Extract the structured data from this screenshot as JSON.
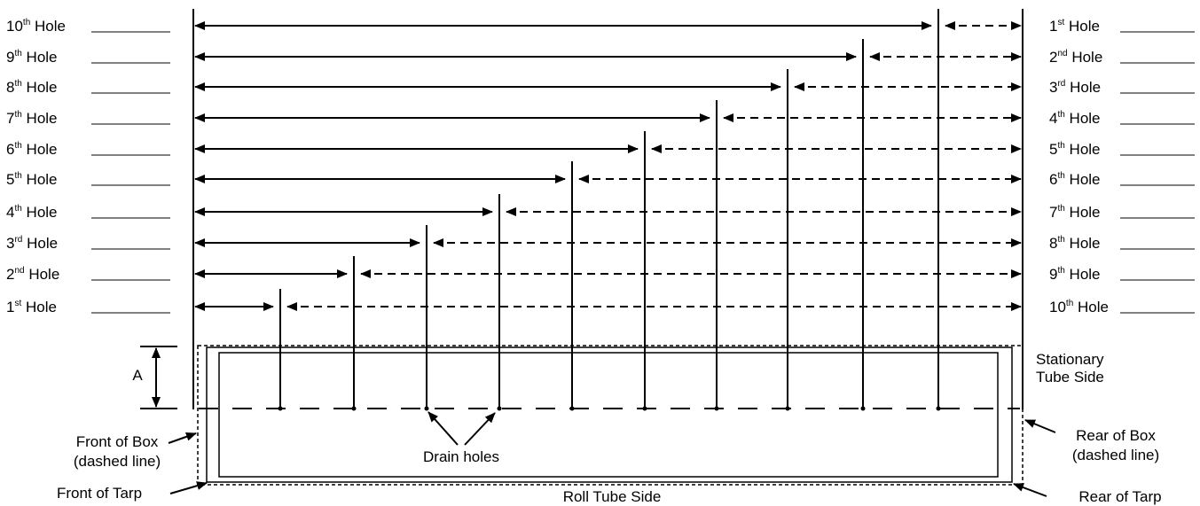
{
  "left_labels": [
    {
      "num": "10",
      "sup": "th",
      "word": "Hole"
    },
    {
      "num": "9",
      "sup": "th",
      "word": "Hole"
    },
    {
      "num": "8",
      "sup": "th",
      "word": "Hole"
    },
    {
      "num": "7",
      "sup": "th",
      "word": "Hole"
    },
    {
      "num": "6",
      "sup": "th",
      "word": "Hole"
    },
    {
      "num": "5",
      "sup": "th",
      "word": "Hole"
    },
    {
      "num": "4",
      "sup": "th",
      "word": "Hole"
    },
    {
      "num": "3",
      "sup": "rd",
      "word": "Hole"
    },
    {
      "num": "2",
      "sup": "nd",
      "word": "Hole"
    },
    {
      "num": "1",
      "sup": "st",
      "word": "Hole"
    }
  ],
  "right_labels": [
    {
      "num": "1",
      "sup": "st",
      "word": "Hole"
    },
    {
      "num": "2",
      "sup": "nd",
      "word": "Hole"
    },
    {
      "num": "3",
      "sup": "rd",
      "word": "Hole"
    },
    {
      "num": "4",
      "sup": "th",
      "word": "Hole"
    },
    {
      "num": "5",
      "sup": "th",
      "word": "Hole"
    },
    {
      "num": "6",
      "sup": "th",
      "word": "Hole"
    },
    {
      "num": "7",
      "sup": "th",
      "word": "Hole"
    },
    {
      "num": "8",
      "sup": "th",
      "word": "Hole"
    },
    {
      "num": "9",
      "sup": "th",
      "word": "Hole"
    },
    {
      "num": "10",
      "sup": "th",
      "word": "Hole"
    }
  ],
  "dimension_label": "A",
  "stationary_label": [
    "Stationary",
    "Tube Side"
  ],
  "drain_label": "Drain holes",
  "front_box_label": [
    "Front of Box",
    "(dashed line)"
  ],
  "rear_box_label": [
    "Rear of Box",
    "(dashed line)"
  ],
  "front_tarp_label": "Front of Tarp",
  "rear_tarp_label": "Rear of Tarp",
  "roll_tube_label": "Roll Tube Side",
  "colors": {
    "line": "#000000",
    "background": "#ffffff"
  }
}
